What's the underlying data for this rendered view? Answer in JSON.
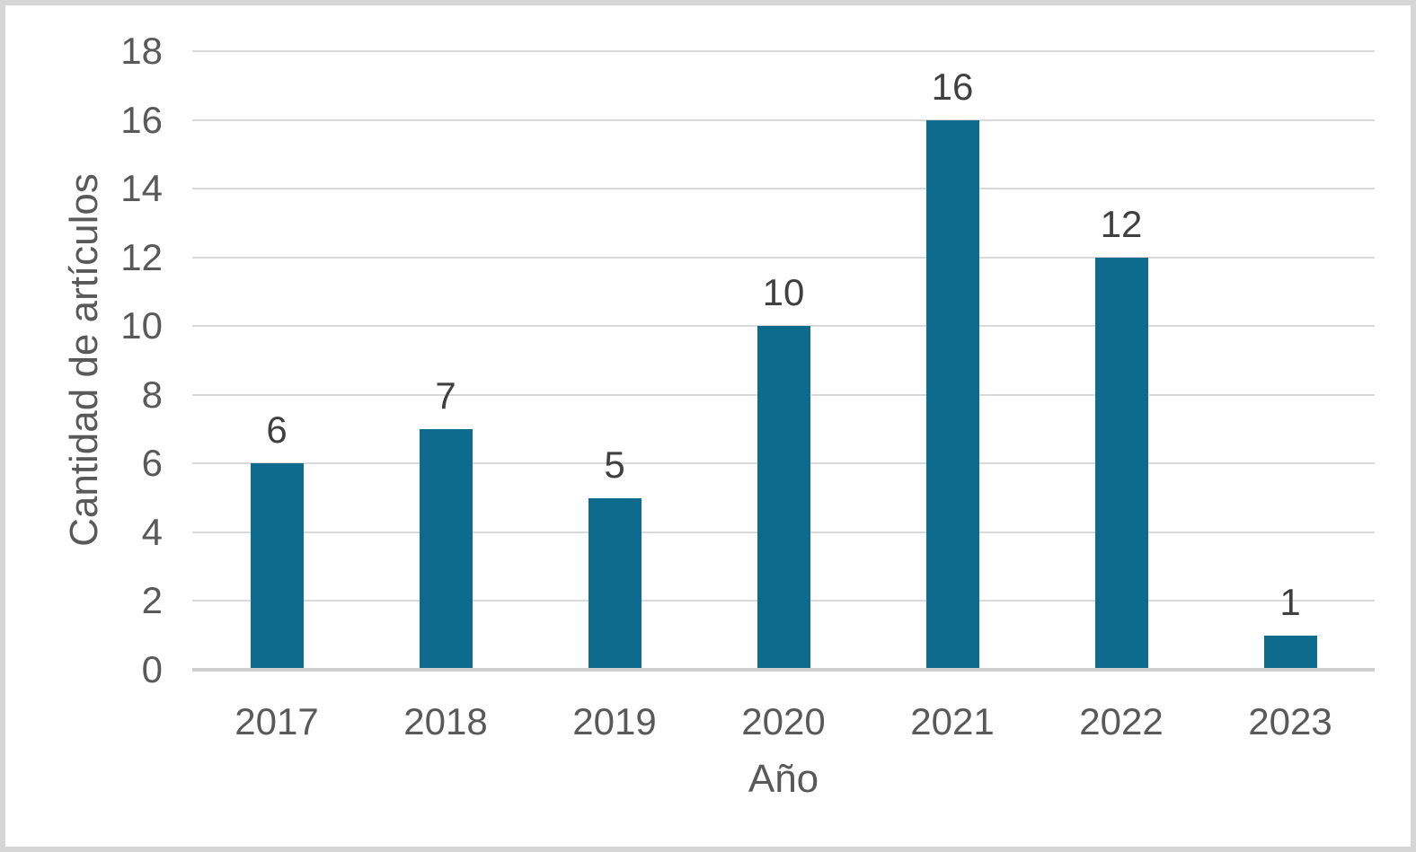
{
  "chart_data": {
    "type": "bar",
    "title": "",
    "categories": [
      "2017",
      "2018",
      "2019",
      "2020",
      "2021",
      "2022",
      "2023"
    ],
    "values": [
      6,
      7,
      5,
      10,
      16,
      12,
      1
    ],
    "xlabel": "Año",
    "ylabel": "Cantidad de artículos",
    "ylim": [
      0,
      18
    ],
    "yticks": [
      0,
      2,
      4,
      6,
      8,
      10,
      12,
      14,
      16,
      18
    ],
    "grid": "horizontal",
    "legend_position": "none",
    "data_labels_shown": true
  },
  "colors": {
    "bar": "#0d6b8e",
    "gridline": "#d9d9d9",
    "axis_line": "#cfcfcf",
    "tick_text": "#595959",
    "axis_title_text": "#595959",
    "data_label_text": "#404040",
    "frame_border": "#d6d6d6",
    "background": "#ffffff"
  }
}
